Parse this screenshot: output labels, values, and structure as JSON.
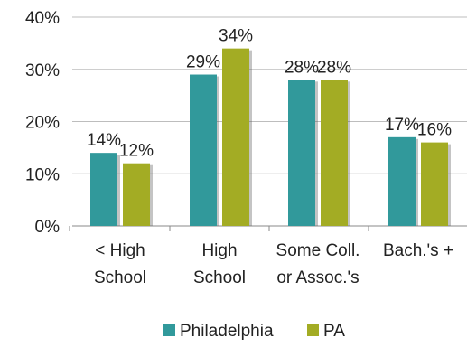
{
  "chart_data": {
    "type": "bar",
    "categories": [
      [
        "< High",
        "School"
      ],
      [
        "High",
        "School"
      ],
      [
        "Some Coll.",
        "or Assoc.'s"
      ],
      [
        "Bach.'s +"
      ]
    ],
    "series": [
      {
        "name": "Philadelphia",
        "values": [
          14,
          29,
          28,
          17
        ],
        "labels": [
          "14%",
          "29%",
          "28%",
          "17%"
        ],
        "color": "#31999b"
      },
      {
        "name": "PA",
        "values": [
          12,
          34,
          28,
          16
        ],
        "labels": [
          "12%",
          "34%",
          "28%",
          "16%"
        ],
        "color": "#a3ac24"
      }
    ],
    "ylim": [
      0,
      40
    ],
    "yticks": [
      0,
      10,
      20,
      30,
      40
    ],
    "ytick_labels": [
      "0%",
      "10%",
      "20%",
      "30%",
      "40%"
    ],
    "grid": true,
    "legend_position": "bottom",
    "title": "",
    "xlabel": "",
    "ylabel": ""
  }
}
